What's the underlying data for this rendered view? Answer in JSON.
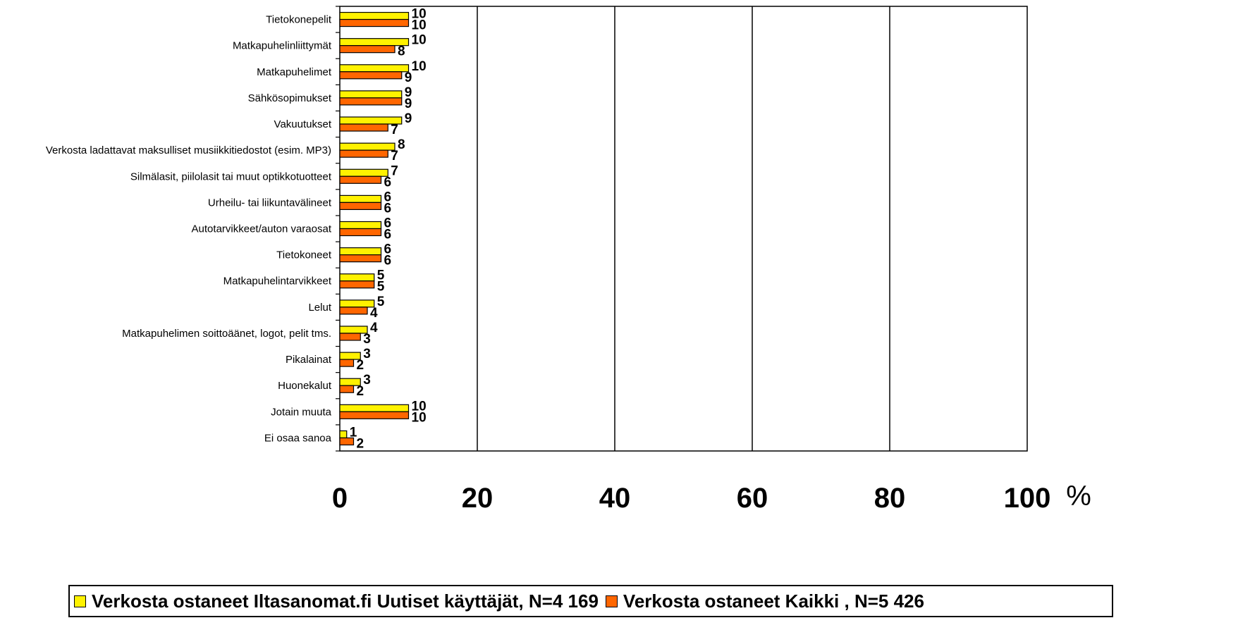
{
  "chart_data": {
    "type": "bar",
    "orientation": "horizontal",
    "categories": [
      "Tietokonepelit",
      "Matkapuhelinliittymät",
      "Matkapuhelimet",
      "Sähkösopimukset",
      "Vakuutukset",
      "Verkosta ladattavat maksulliset musiikkitiedostot (esim. MP3)",
      "Silmälasit, piilolasit tai muut optikkotuotteet",
      "Urheilu- tai liikuntavälineet",
      "Autotarvikkeet/auton varaosat",
      "Tietokoneet",
      "Matkapuhelintarvikkeet",
      "Lelut",
      "Matkapuhelimen soittoäänet, logot, pelit tms.",
      "Pikalainat",
      "Huonekalut",
      "Jotain muuta",
      "Ei osaa sanoa"
    ],
    "series": [
      {
        "name": "Verkosta ostaneet Iltasanomat.fi Uutiset käyttäjät, N=4 169",
        "color": "#FFF200",
        "values": [
          10,
          10,
          10,
          9,
          9,
          8,
          7,
          6,
          6,
          6,
          5,
          5,
          4,
          3,
          3,
          10,
          1
        ]
      },
      {
        "name": "Verkosta ostaneet Kaikki , N=5 426",
        "color": "#FF6600",
        "values": [
          10,
          8,
          9,
          9,
          7,
          7,
          6,
          6,
          6,
          6,
          5,
          4,
          3,
          2,
          2,
          10,
          2
        ]
      }
    ],
    "xlim": [
      0,
      100
    ],
    "xticks": [
      "0",
      "20",
      "40",
      "60",
      "80",
      "100"
    ],
    "x_unit": "%",
    "grid": "vertical",
    "legend": "bottom"
  }
}
